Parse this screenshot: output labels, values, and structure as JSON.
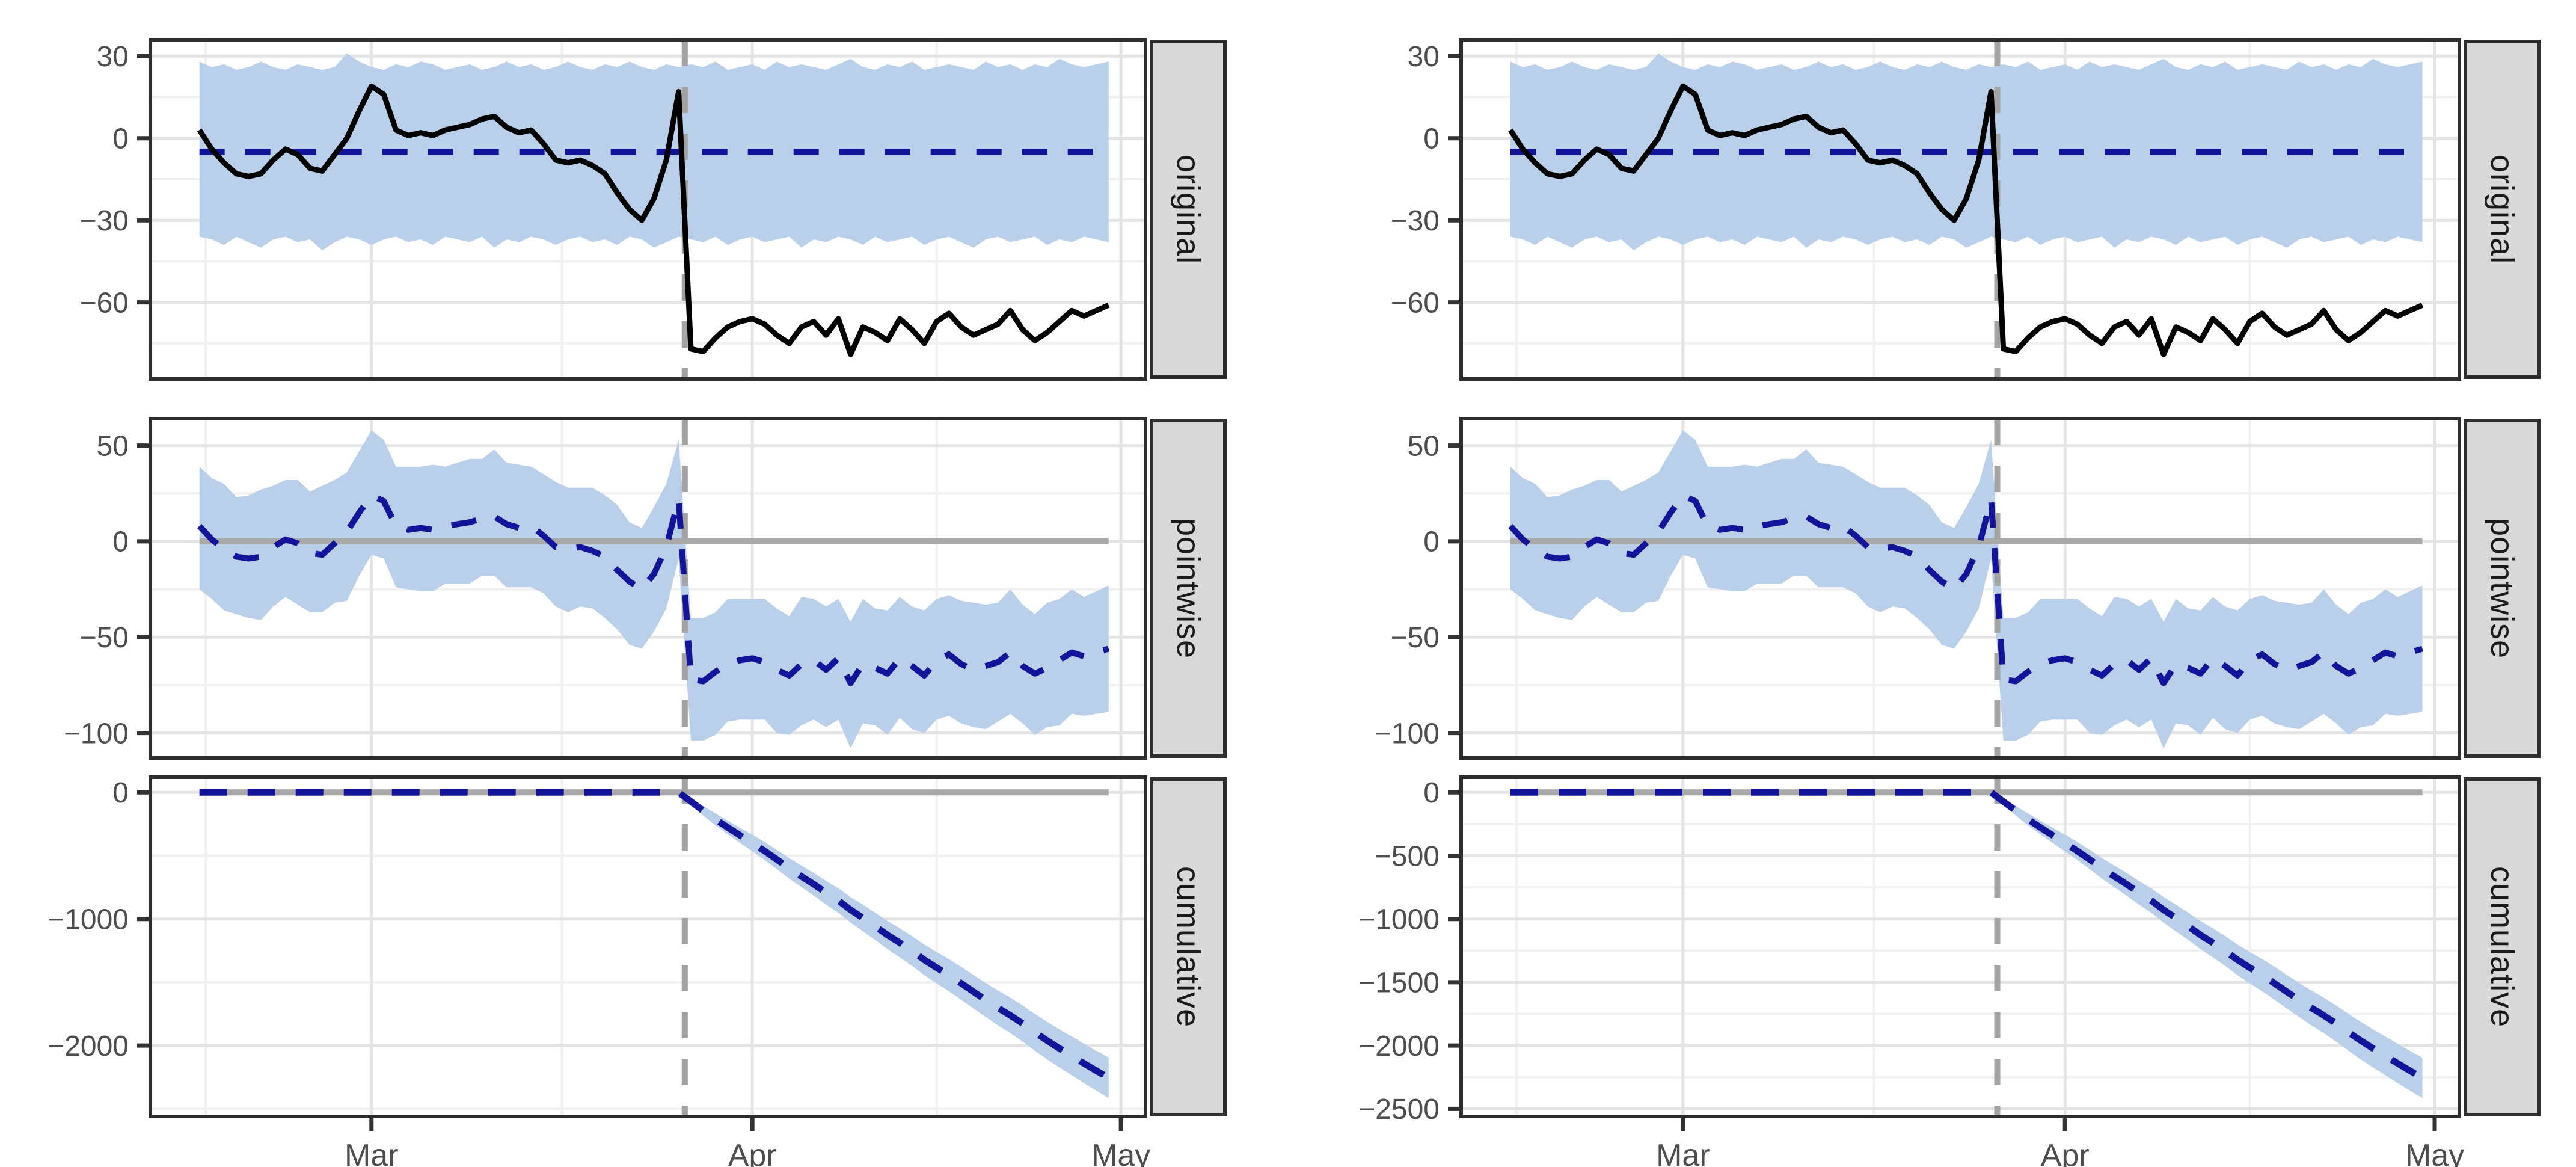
{
  "chart_data": {
    "type": "line",
    "title": "",
    "description_labels": {
      "facet_original": "original",
      "facet_pointwise": "pointwise",
      "facet_cumulative": "cumulative"
    },
    "x": {
      "domain_days": [
        0,
        81
      ],
      "n_points": 75,
      "series_start_day": 4,
      "intervention_day": 43.5,
      "ticks": [
        {
          "label": "Mar",
          "day": 18
        },
        {
          "label": "Apr",
          "day": 49
        },
        {
          "label": "May",
          "day": 79
        }
      ],
      "minor_days": [
        4.5,
        33.5,
        64
      ]
    },
    "panels": [
      {
        "id": "original",
        "label": "original",
        "y_domain": [
          -88,
          36
        ],
        "band": {
          "upper": "pred_upper",
          "lower": "pred_lower"
        },
        "lines": [
          {
            "series": "pred_mean",
            "style": "navy-dashed"
          },
          {
            "series": "observed",
            "style": "black-solid"
          }
        ],
        "zero_line": false
      },
      {
        "id": "pointwise",
        "label": "pointwise",
        "y_domain": [
          -113,
          64
        ],
        "band": {
          "upper": "pw_upper",
          "lower": "pw_lower"
        },
        "lines": [
          {
            "series": "pw_mean",
            "style": "navy-dashed"
          }
        ],
        "zero_line": true
      },
      {
        "id": "cumulative",
        "label": "cumulative",
        "y_domain": [
          -2560,
          120
        ],
        "band": {
          "upper": "cum_upper",
          "lower": "cum_lower"
        },
        "lines": [
          {
            "series": "cum_mean",
            "style": "navy-dashed-thick"
          }
        ],
        "zero_line": true
      }
    ],
    "figures": [
      {
        "id": "left",
        "panels": [
          {
            "y_ticks": [
              {
                "value": 30,
                "label": "30"
              },
              {
                "value": 0,
                "label": "0"
              },
              {
                "value": -30,
                "label": "−30"
              },
              {
                "value": -60,
                "label": "−60"
              }
            ],
            "y_minor": [
              15,
              -15,
              -45,
              -75
            ]
          },
          {
            "y_ticks": [
              {
                "value": 50,
                "label": "50"
              },
              {
                "value": 0,
                "label": "0"
              },
              {
                "value": -50,
                "label": "−50"
              },
              {
                "value": -100,
                "label": "−100"
              }
            ],
            "y_minor": [
              25,
              -25,
              -75
            ]
          },
          {
            "y_ticks": [
              {
                "value": 0,
                "label": "0"
              },
              {
                "value": -1000,
                "label": "−1000"
              },
              {
                "value": -2000,
                "label": "−2000"
              }
            ],
            "y_minor": [
              -500,
              -1500,
              -2500
            ]
          }
        ]
      },
      {
        "id": "right",
        "panels": [
          {
            "y_ticks": [
              {
                "value": 30,
                "label": "30"
              },
              {
                "value": 0,
                "label": "0"
              },
              {
                "value": -30,
                "label": "−30"
              },
              {
                "value": -60,
                "label": "−60"
              }
            ],
            "y_minor": [
              15,
              -15,
              -45,
              -75
            ]
          },
          {
            "y_ticks": [
              {
                "value": 50,
                "label": "50"
              },
              {
                "value": 0,
                "label": "0"
              },
              {
                "value": -50,
                "label": "−50"
              },
              {
                "value": -100,
                "label": "−100"
              }
            ],
            "y_minor": [
              25,
              -25,
              -75
            ]
          },
          {
            "y_ticks": [
              {
                "value": 0,
                "label": "0"
              },
              {
                "value": -500,
                "label": "−500"
              },
              {
                "value": -1000,
                "label": "−1000"
              },
              {
                "value": -1500,
                "label": "−1500"
              },
              {
                "value": -2000,
                "label": "−2000"
              },
              {
                "value": -2500,
                "label": "−2500"
              }
            ],
            "y_minor": [
              -250,
              -750,
              -1250,
              -1750,
              -2250
            ]
          }
        ]
      }
    ],
    "series": {
      "observed": [
        3,
        -4,
        -9,
        -13,
        -14,
        -13,
        -8,
        -4,
        -6,
        -11,
        -12,
        -6,
        0,
        10,
        19,
        16,
        3,
        1,
        2,
        1,
        3,
        4,
        5,
        7,
        8,
        4,
        2,
        3,
        -2,
        -8,
        -9,
        -8,
        -10,
        -13,
        -20,
        -26,
        -30,
        -22,
        -8,
        17,
        -77,
        -78,
        -73,
        -69,
        -67,
        -66,
        -68,
        -72,
        -75,
        -69,
        -67,
        -72,
        -66,
        -79,
        -69,
        -71,
        -74,
        -66,
        -70,
        -75,
        -67,
        -64,
        -69,
        -72,
        -70,
        -68,
        -63,
        -70,
        -74,
        -71,
        -67,
        -63,
        -65,
        -63,
        -61
      ],
      "pred_mean": -5,
      "pred_upper": [
        28,
        26,
        27,
        25,
        26,
        28,
        26,
        25,
        27,
        26,
        25,
        26,
        31,
        28,
        26,
        25,
        27,
        26,
        28,
        27,
        25,
        26,
        27,
        25,
        26,
        28,
        26,
        27,
        25,
        26,
        28,
        26,
        25,
        27,
        26,
        28,
        26,
        25,
        27,
        26,
        27,
        26,
        28,
        25,
        26,
        27,
        25,
        28,
        26,
        27,
        26,
        25,
        27,
        29,
        26,
        25,
        27,
        26,
        28,
        25,
        26,
        27,
        26,
        25,
        28,
        26,
        27,
        25,
        27,
        26,
        29,
        27,
        26,
        27,
        28
      ],
      "pred_lower": [
        -36,
        -37,
        -39,
        -36,
        -38,
        -40,
        -37,
        -36,
        -38,
        -37,
        -41,
        -38,
        -36,
        -37,
        -39,
        -37,
        -36,
        -38,
        -37,
        -39,
        -36,
        -37,
        -38,
        -36,
        -40,
        -37,
        -38,
        -36,
        -37,
        -39,
        -37,
        -36,
        -38,
        -37,
        -39,
        -36,
        -37,
        -40,
        -38,
        -36,
        -37,
        -38,
        -36,
        -39,
        -37,
        -36,
        -38,
        -37,
        -36,
        -40,
        -37,
        -38,
        -36,
        -37,
        -39,
        -36,
        -38,
        -37,
        -36,
        -39,
        -37,
        -36,
        -38,
        -40,
        -37,
        -36,
        -38,
        -37,
        -36,
        -39,
        -37,
        -38,
        -36,
        -37,
        -38
      ],
      "pw_mean": [
        8,
        1,
        -4,
        -8,
        -9,
        -8,
        -3,
        1,
        -1,
        -6,
        -7,
        -1,
        5,
        15,
        24,
        21,
        8,
        6,
        7,
        6,
        8,
        9,
        10,
        12,
        13,
        9,
        7,
        8,
        3,
        -3,
        -4,
        -3,
        -5,
        -8,
        -15,
        -21,
        -25,
        -17,
        -3,
        22,
        -72,
        -73,
        -68,
        -64,
        -62,
        -61,
        -63,
        -67,
        -70,
        -64,
        -62,
        -67,
        -61,
        -74,
        -64,
        -66,
        -69,
        -61,
        -65,
        -70,
        -62,
        -59,
        -64,
        -67,
        -65,
        -63,
        -58,
        -65,
        -69,
        -66,
        -62,
        -58,
        -60,
        -58,
        -56
      ],
      "pw_upper": [
        39,
        33,
        30,
        23,
        24,
        27,
        29,
        32,
        32,
        26,
        29,
        32,
        36,
        47,
        58,
        53,
        39,
        39,
        39,
        40,
        39,
        41,
        43,
        43,
        48,
        41,
        40,
        39,
        35,
        31,
        28,
        28,
        28,
        24,
        19,
        10,
        7,
        18,
        30,
        53,
        -40,
        -40,
        -37,
        -30,
        -30,
        -30,
        -30,
        -35,
        -39,
        -29,
        -30,
        -34,
        -30,
        -42,
        -30,
        -35,
        -36,
        -29,
        -34,
        -36,
        -30,
        -28,
        -31,
        -32,
        -33,
        -32,
        -25,
        -33,
        -38,
        -32,
        -30,
        -25,
        -29,
        -26,
        -23
      ],
      "pw_lower": [
        -25,
        -30,
        -36,
        -38,
        -40,
        -41,
        -34,
        -29,
        -33,
        -37,
        -37,
        -32,
        -31,
        -18,
        -7,
        -9,
        -24,
        -25,
        -26,
        -26,
        -22,
        -22,
        -22,
        -18,
        -18,
        -24,
        -24,
        -24,
        -27,
        -34,
        -37,
        -34,
        -35,
        -40,
        -46,
        -54,
        -56,
        -47,
        -35,
        -9,
        -104,
        -104,
        -101,
        -94,
        -93,
        -93,
        -93,
        -100,
        -101,
        -96,
        -93,
        -97,
        -93,
        -108,
        -95,
        -96,
        -101,
        -92,
        -98,
        -100,
        -93,
        -91,
        -95,
        -97,
        -98,
        -94,
        -90,
        -95,
        -101,
        -97,
        -96,
        -90,
        -91,
        -90,
        -89
      ],
      "cum_mean": [
        0,
        0,
        0,
        0,
        0,
        0,
        0,
        0,
        0,
        0,
        0,
        0,
        0,
        0,
        0,
        0,
        0,
        0,
        0,
        0,
        0,
        0,
        0,
        0,
        0,
        0,
        0,
        0,
        0,
        0,
        0,
        0,
        0,
        0,
        0,
        0,
        0,
        0,
        0,
        0,
        -72,
        -145,
        -213,
        -277,
        -339,
        -400,
        -463,
        -530,
        -600,
        -664,
        -726,
        -793,
        -854,
        -928,
        -992,
        -1058,
        -1127,
        -1188,
        -1253,
        -1323,
        -1385,
        -1444,
        -1508,
        -1575,
        -1640,
        -1703,
        -1761,
        -1826,
        -1895,
        -1961,
        -2023,
        -2081,
        -2141,
        -2199,
        -2255
      ],
      "cum_upper": [
        0,
        0,
        0,
        0,
        0,
        0,
        0,
        0,
        0,
        0,
        0,
        0,
        0,
        0,
        0,
        0,
        0,
        0,
        0,
        0,
        0,
        0,
        0,
        0,
        0,
        0,
        0,
        0,
        0,
        0,
        0,
        0,
        0,
        0,
        0,
        0,
        0,
        0,
        0,
        0,
        -45,
        -107,
        -166,
        -223,
        -279,
        -334,
        -392,
        -454,
        -519,
        -579,
        -636,
        -700,
        -757,
        -827,
        -887,
        -950,
        -1016,
        -1073,
        -1135,
        -1202,
        -1261,
        -1317,
        -1378,
        -1443,
        -1505,
        -1565,
        -1621,
        -1683,
        -1750,
        -1813,
        -1873,
        -1928,
        -1986,
        -2042,
        -2095
      ],
      "cum_lower": [
        0,
        0,
        0,
        0,
        0,
        0,
        0,
        0,
        0,
        0,
        0,
        0,
        0,
        0,
        0,
        0,
        0,
        0,
        0,
        0,
        0,
        0,
        0,
        0,
        0,
        0,
        0,
        0,
        0,
        0,
        0,
        0,
        0,
        0,
        0,
        0,
        0,
        0,
        0,
        0,
        -99,
        -183,
        -260,
        -331,
        -399,
        -466,
        -534,
        -606,
        -681,
        -749,
        -816,
        -886,
        -951,
        -1029,
        -1097,
        -1166,
        -1238,
        -1303,
        -1371,
        -1444,
        -1509,
        -1571,
        -1638,
        -1707,
        -1775,
        -1841,
        -1901,
        -1969,
        -2040,
        -2109,
        -2173,
        -2234,
        -2296,
        -2356,
        -2415
      ]
    },
    "colors": {
      "band_fill": "#B9CFEA",
      "prediction_line": "#14149B",
      "observed_line": "#000000",
      "zero_line": "#A9A9A9",
      "intervention_line": "#A3A3A3",
      "grid_major": "#E4E4E4",
      "grid_minor": "#F1F1F1",
      "panel_border": "#2E2E2E",
      "tick_mark": "#333333",
      "tick_label": "#4D4D4D",
      "strip_bg": "#D9D9D9",
      "strip_text": "#1A1A1A"
    }
  }
}
